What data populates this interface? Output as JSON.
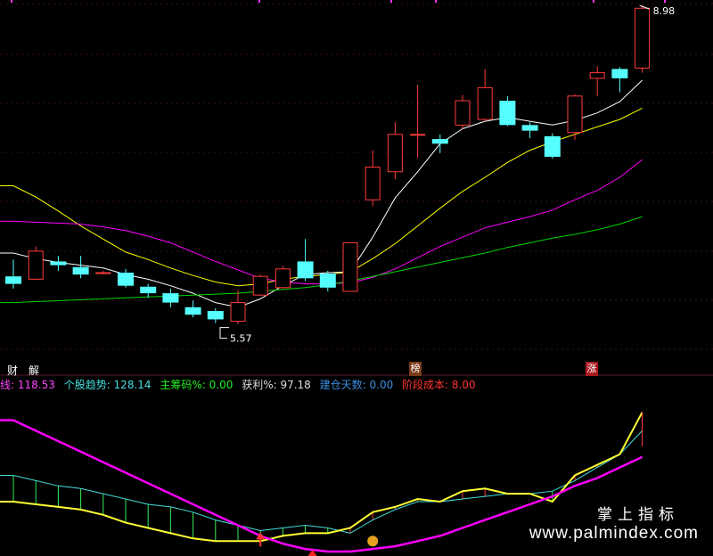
{
  "chart_data": {
    "type": "candlestick",
    "y_price_range": [
      5.3,
      9.0
    ],
    "annotations": {
      "high_label": "8.98",
      "low_label": "5.57"
    },
    "candles": [
      {
        "o": 6.08,
        "c": 6.0,
        "h": 6.26,
        "l": 5.95
      },
      {
        "o": 6.05,
        "c": 6.35,
        "h": 6.4,
        "l": 6.04
      },
      {
        "o": 6.24,
        "c": 6.2,
        "h": 6.3,
        "l": 6.14
      },
      {
        "o": 6.18,
        "c": 6.1,
        "h": 6.3,
        "l": 6.06
      },
      {
        "o": 6.12,
        "c": 6.12,
        "h": 6.14,
        "l": 6.1
      },
      {
        "o": 6.12,
        "c": 5.98,
        "h": 6.16,
        "l": 5.96
      },
      {
        "o": 5.97,
        "c": 5.9,
        "h": 6.0,
        "l": 5.85
      },
      {
        "o": 5.9,
        "c": 5.8,
        "h": 5.95,
        "l": 5.75
      },
      {
        "o": 5.75,
        "c": 5.67,
        "h": 5.82,
        "l": 5.64
      },
      {
        "o": 5.71,
        "c": 5.62,
        "h": 5.74,
        "l": 5.58
      },
      {
        "o": 5.6,
        "c": 5.8,
        "h": 5.93,
        "l": 5.57
      },
      {
        "o": 5.88,
        "c": 6.08,
        "h": 6.1,
        "l": 5.87
      },
      {
        "o": 5.96,
        "c": 6.16,
        "h": 6.19,
        "l": 5.95
      },
      {
        "o": 6.24,
        "c": 6.06,
        "h": 6.48,
        "l": 6.03
      },
      {
        "o": 6.11,
        "c": 5.96,
        "h": 6.14,
        "l": 5.92
      },
      {
        "o": 5.92,
        "c": 6.44,
        "h": 6.44,
        "l": 5.92
      },
      {
        "o": 6.9,
        "c": 7.25,
        "h": 7.43,
        "l": 6.83
      },
      {
        "o": 7.2,
        "c": 7.6,
        "h": 7.73,
        "l": 7.12
      },
      {
        "o": 7.6,
        "c": 7.6,
        "h": 8.13,
        "l": 7.35
      },
      {
        "o": 7.55,
        "c": 7.5,
        "h": 7.6,
        "l": 7.4
      },
      {
        "o": 7.7,
        "c": 7.96,
        "h": 8.02,
        "l": 7.66
      },
      {
        "o": 7.76,
        "c": 8.1,
        "h": 8.3,
        "l": 7.74
      },
      {
        "o": 7.96,
        "c": 7.7,
        "h": 8.01,
        "l": 7.69
      },
      {
        "o": 7.7,
        "c": 7.64,
        "h": 7.73,
        "l": 7.56
      },
      {
        "o": 7.58,
        "c": 7.36,
        "h": 7.61,
        "l": 7.34
      },
      {
        "o": 7.62,
        "c": 8.01,
        "h": 8.03,
        "l": 7.54
      },
      {
        "o": 8.2,
        "c": 8.26,
        "h": 8.33,
        "l": 8.01
      },
      {
        "o": 8.3,
        "c": 8.2,
        "h": 8.32,
        "l": 8.05
      },
      {
        "o": 8.31,
        "c": 8.95,
        "h": 8.98,
        "l": 8.26
      }
    ],
    "ma_lines": [
      {
        "color": "#ffffff",
        "values": [
          6.33,
          6.27,
          6.23,
          6.2,
          6.17,
          6.1,
          6.05,
          5.98,
          5.9,
          5.8,
          5.75,
          5.84,
          5.98,
          6.1,
          6.12,
          6.13,
          6.5,
          6.92,
          7.2,
          7.5,
          7.66,
          7.74,
          7.78,
          7.74,
          7.7,
          7.75,
          7.83,
          7.95,
          8.18
        ]
      },
      {
        "color": "#ffff00",
        "values": [
          7.05,
          6.93,
          6.78,
          6.62,
          6.48,
          6.34,
          6.26,
          6.17,
          6.09,
          6.02,
          5.98,
          6.0,
          6.05,
          6.08,
          6.1,
          6.13,
          6.27,
          6.43,
          6.62,
          6.81,
          6.99,
          7.14,
          7.3,
          7.43,
          7.52,
          7.6,
          7.68,
          7.76,
          7.88
        ]
      },
      {
        "color": "#ff00ff",
        "values": [
          6.67,
          6.66,
          6.65,
          6.64,
          6.61,
          6.57,
          6.51,
          6.44,
          6.34,
          6.24,
          6.15,
          6.06,
          6.02,
          6.0,
          6.0,
          6.01,
          6.07,
          6.16,
          6.28,
          6.4,
          6.5,
          6.6,
          6.66,
          6.72,
          6.79,
          6.9,
          7.0,
          7.14,
          7.33
        ]
      },
      {
        "color": "#00d400",
        "values": [
          5.8,
          5.81,
          5.82,
          5.83,
          5.84,
          5.85,
          5.86,
          5.87,
          5.88,
          5.89,
          5.9,
          5.92,
          5.94,
          5.96,
          5.99,
          6.03,
          6.08,
          6.13,
          6.18,
          6.23,
          6.28,
          6.33,
          6.39,
          6.44,
          6.49,
          6.53,
          6.58,
          6.64,
          6.72
        ]
      }
    ],
    "signals": {
      "cai_label": "财",
      "jie_label": "解",
      "bang_label": "榜",
      "zhang_label": "涨"
    },
    "legend": [
      {
        "text": "线: 118.53",
        "color": "#ff44ff"
      },
      {
        "text": "个股趋势: 128.14",
        "color": "#44dddd"
      },
      {
        "text": "主筹码%: 0.00",
        "color": "#22ee22"
      },
      {
        "text": "获利%: 97.18",
        "color": "#dddddd"
      },
      {
        "text": "建仓天数: 0.00",
        "color": "#3b8fe0"
      },
      {
        "text": "阶段成本: 8.00",
        "color": "#ff3333"
      }
    ],
    "indicator": {
      "y_range": [
        75,
        135
      ],
      "trend": [
        105,
        103,
        101,
        100,
        98,
        96,
        94,
        93,
        91,
        88,
        86,
        84,
        85,
        86,
        85,
        83,
        88,
        92,
        95,
        95,
        96,
        97,
        98,
        98,
        99,
        103,
        108,
        113,
        122
      ],
      "main": [
        95,
        94,
        93,
        92,
        90,
        87,
        85,
        83,
        81,
        80,
        80,
        80,
        82,
        83,
        83,
        85,
        91,
        93,
        96,
        95,
        99,
        100,
        98,
        98,
        95,
        105,
        109,
        113,
        129
      ],
      "purple": [
        126,
        122,
        118,
        114,
        110,
        106,
        102,
        98,
        94,
        90,
        86,
        82,
        79,
        77,
        76,
        76,
        77,
        78,
        80,
        82,
        85,
        88,
        91,
        94,
        97,
        101,
        104,
        108,
        112
      ]
    },
    "watermark": {
      "cn": "掌上指标",
      "url": "www.palmindex.com"
    }
  }
}
